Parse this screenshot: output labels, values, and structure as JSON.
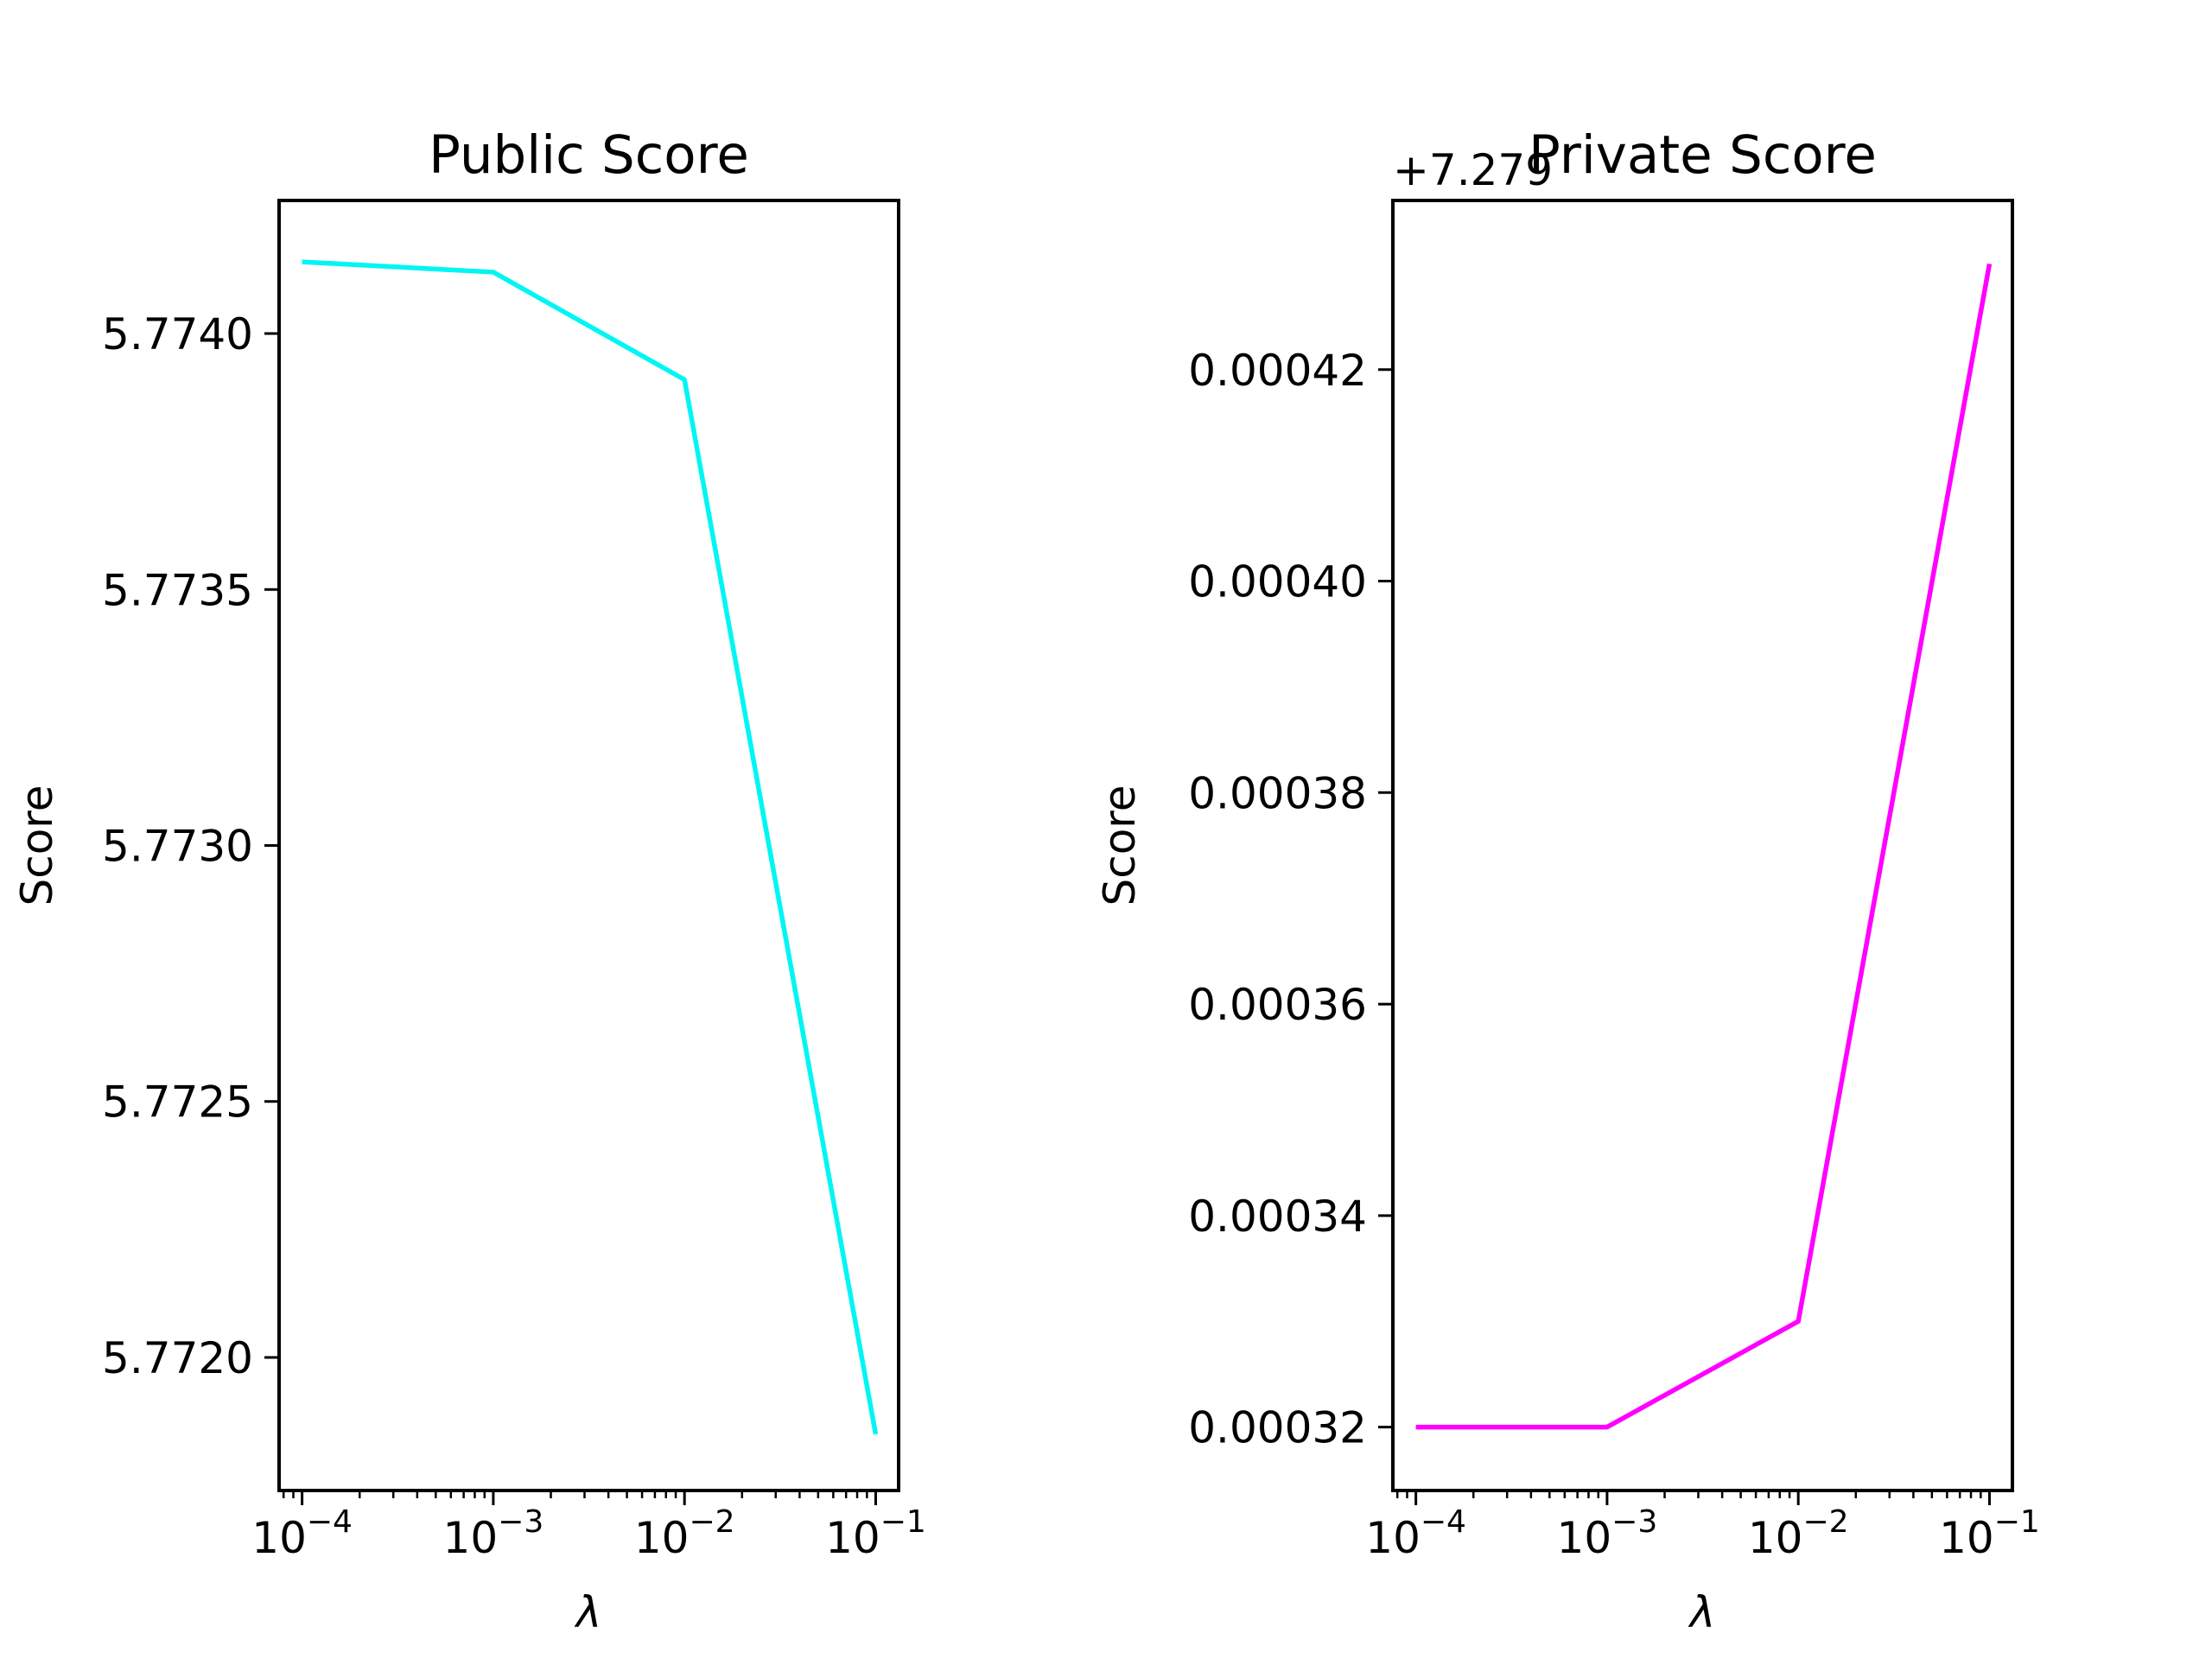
{
  "chart_data": [
    {
      "type": "line",
      "title": "Public Score",
      "xlabel": "λ",
      "ylabel": "Score",
      "xscale": "log",
      "x": [
        0.0001,
        0.001,
        0.01,
        0.1
      ],
      "xlim": [
        7.58e-05,
        0.1318
      ],
      "xticks": [
        {
          "value": 0.0001,
          "base": "10",
          "exp": "−4"
        },
        {
          "value": 0.001,
          "base": "10",
          "exp": "−3"
        },
        {
          "value": 0.01,
          "base": "10",
          "exp": "−2"
        },
        {
          "value": 0.1,
          "base": "10",
          "exp": "−1"
        }
      ],
      "ylim": [
        5.77174,
        5.77426
      ],
      "yticks": [
        {
          "value": 5.772,
          "label": "5.7720"
        },
        {
          "value": 5.7725,
          "label": "5.7725"
        },
        {
          "value": 5.773,
          "label": "5.7730"
        },
        {
          "value": 5.7735,
          "label": "5.7735"
        },
        {
          "value": 5.774,
          "label": "5.7740"
        }
      ],
      "y_offset_label": "",
      "series": [
        {
          "values": [
            5.77414,
            5.77412,
            5.77391,
            5.77185
          ],
          "color": "#00f5f5"
        }
      ],
      "grid": false,
      "legend": false
    },
    {
      "type": "line",
      "title": "Private Score",
      "xlabel": "λ",
      "ylabel": "Score",
      "xscale": "log",
      "x": [
        0.0001,
        0.001,
        0.01,
        0.1
      ],
      "xlim": [
        7.58e-05,
        0.1318
      ],
      "xticks": [
        {
          "value": 0.0001,
          "base": "10",
          "exp": "−4"
        },
        {
          "value": 0.001,
          "base": "10",
          "exp": "−3"
        },
        {
          "value": 0.01,
          "base": "10",
          "exp": "−2"
        },
        {
          "value": 0.1,
          "base": "10",
          "exp": "−1"
        }
      ],
      "ylim": [
        0.000314,
        0.000436
      ],
      "yticks": [
        {
          "value": 0.00032,
          "label": "0.00032"
        },
        {
          "value": 0.00034,
          "label": "0.00034"
        },
        {
          "value": 0.00036,
          "label": "0.00036"
        },
        {
          "value": 0.00038,
          "label": "0.00038"
        },
        {
          "value": 0.0004,
          "label": "0.00040"
        },
        {
          "value": 0.00042,
          "label": "0.00042"
        }
      ],
      "y_offset_label": "+7.279",
      "series": [
        {
          "values": [
            0.00032,
            0.00032,
            0.00033,
            0.00043
          ],
          "color": "#ff00ff"
        }
      ],
      "grid": false,
      "legend": false
    }
  ]
}
